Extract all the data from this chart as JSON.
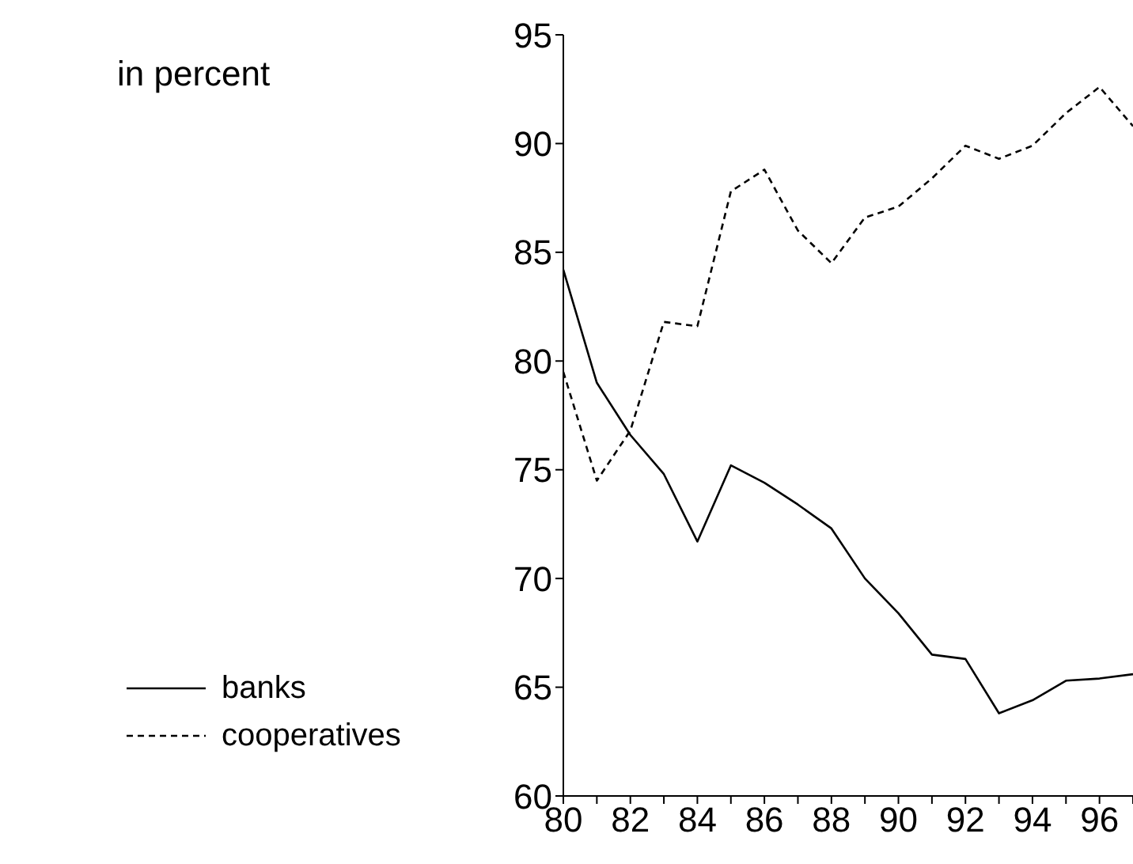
{
  "chart_data": {
    "type": "line",
    "annotations": [
      "in percent"
    ],
    "x": [
      80,
      81,
      82,
      83,
      84,
      85,
      86,
      87,
      88,
      89,
      90,
      91,
      92,
      93,
      94,
      95,
      96,
      97
    ],
    "series": [
      {
        "name": "banks",
        "color": "#000000",
        "line_style": "solid",
        "values": [
          84.2,
          79.0,
          76.6,
          74.8,
          71.7,
          75.2,
          74.4,
          73.4,
          72.3,
          70.0,
          68.4,
          66.5,
          66.3,
          63.8,
          64.4,
          65.3,
          65.4,
          65.6
        ]
      },
      {
        "name": "cooperatives",
        "color": "#000000",
        "line_style": "dashed",
        "values": [
          79.5,
          74.5,
          76.8,
          81.8,
          81.6,
          87.8,
          88.8,
          86.0,
          84.5,
          86.6,
          87.1,
          88.4,
          89.9,
          89.3,
          89.9,
          91.4,
          92.6,
          90.8
        ]
      }
    ],
    "xlim": [
      80,
      97
    ],
    "xticks": [
      80,
      {
        "value": 81,
        "label": null
      },
      82,
      {
        "value": 83,
        "label": null
      },
      84,
      {
        "value": 85,
        "label": null
      },
      86,
      {
        "value": 87,
        "label": null
      },
      88,
      {
        "value": 89,
        "label": null
      },
      90,
      {
        "value": 91,
        "label": null
      },
      92,
      {
        "value": 93,
        "label": null
      },
      94,
      {
        "value": 95,
        "label": null
      },
      96,
      {
        "value": 97,
        "label": null
      }
    ],
    "ylim": [
      60,
      95
    ],
    "yticks": [
      60,
      65,
      70,
      75,
      80,
      85,
      90,
      95
    ],
    "grid": false,
    "legend": "bottom left",
    "marker": "none"
  }
}
